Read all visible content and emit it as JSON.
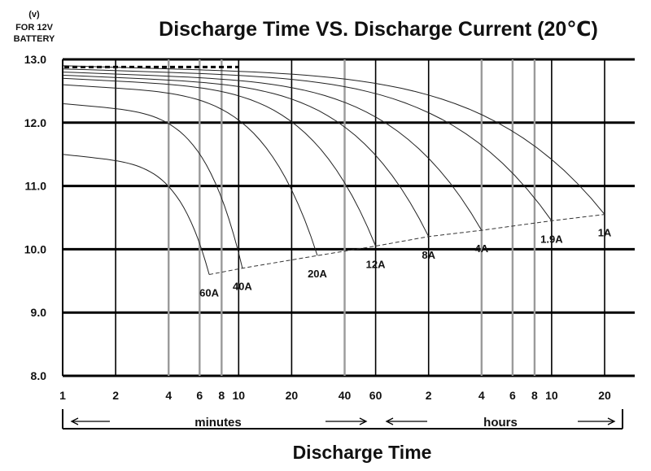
{
  "chart_data": {
    "type": "line",
    "title": "Discharge Time VS. Discharge Current (20℃)",
    "xlabel": "Discharge Time",
    "ylabel_unit": "(v)",
    "ylabel_lines": [
      "FOR 12V",
      "BATTERY"
    ],
    "x_scale": "log",
    "x_unit": "minutes",
    "xlim": [
      1,
      1900
    ],
    "ylim": [
      8.0,
      13.0
    ],
    "y_ticks": [
      "13.0",
      "12.0",
      "11.0",
      "10.0",
      "9.0",
      "8.0"
    ],
    "x_tick_labels": [
      "1",
      "2",
      "4",
      "6",
      "8",
      "10",
      "20",
      "40",
      "60",
      "2",
      "4",
      "6",
      "8",
      "10",
      "20"
    ],
    "x_tick_values_minutes": [
      1,
      2,
      4,
      6,
      8,
      10,
      20,
      40,
      60,
      120,
      240,
      360,
      480,
      600,
      1200
    ],
    "segments": {
      "minutes": "minutes",
      "hours": "hours"
    },
    "series": [
      {
        "name": "60A",
        "initial_v": 11.5,
        "end_time_min": 6.8,
        "end_v": 9.6
      },
      {
        "name": "40A",
        "initial_v": 12.3,
        "end_time_min": 10.5,
        "end_v": 9.7
      },
      {
        "name": "20A",
        "initial_v": 12.6,
        "end_time_min": 28,
        "end_v": 9.9
      },
      {
        "name": "12A",
        "initial_v": 12.7,
        "end_time_min": 60,
        "end_v": 10.05
      },
      {
        "name": "8A",
        "initial_v": 12.75,
        "end_time_min": 120,
        "end_v": 10.2
      },
      {
        "name": "4A",
        "initial_v": 12.8,
        "end_time_min": 240,
        "end_v": 10.3
      },
      {
        "name": "1.9A",
        "initial_v": 12.85,
        "end_time_min": 600,
        "end_v": 10.45
      },
      {
        "name": "1A",
        "initial_v": 12.9,
        "end_time_min": 1200,
        "end_v": 10.55
      }
    ]
  }
}
